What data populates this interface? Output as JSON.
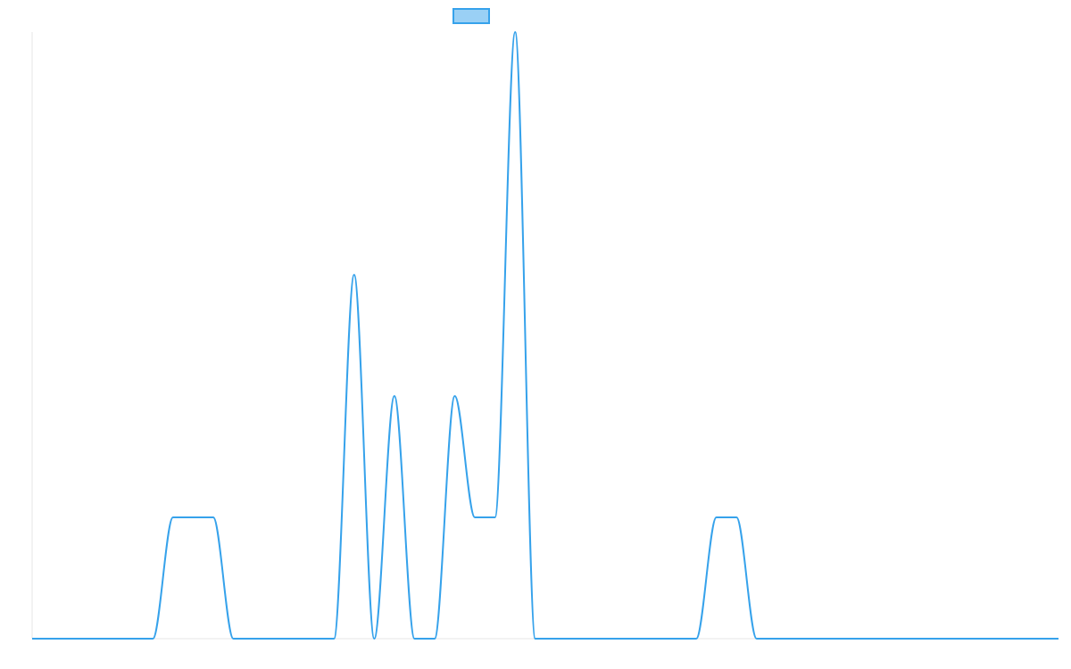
{
  "chart_data": {
    "type": "line",
    "title": "",
    "xlabel": "",
    "ylabel": "",
    "legend": {
      "placement": "top-center",
      "entries": [
        {
          "name": "",
          "color": "#36a2eb"
        }
      ]
    },
    "grid": false,
    "x_range": [
      0,
      51
    ],
    "ylim": [
      0,
      5
    ],
    "series": [
      {
        "name": "",
        "color": "#36a2eb",
        "fill": "#9ad0f5",
        "x": [
          0,
          1,
          2,
          3,
          4,
          5,
          6,
          7,
          8,
          9,
          10,
          11,
          12,
          13,
          14,
          15,
          16,
          17,
          18,
          19,
          20,
          21,
          22,
          23,
          24,
          25,
          26,
          27,
          28,
          29,
          30,
          31,
          32,
          33,
          34,
          35,
          36,
          37,
          38,
          39,
          40,
          41,
          42,
          43,
          44,
          45,
          46,
          47,
          48,
          49,
          50,
          51
        ],
        "values": [
          0,
          0,
          0,
          0,
          0,
          0,
          0,
          1,
          1,
          1,
          0,
          0,
          0,
          0,
          0,
          0,
          3,
          0,
          2,
          0,
          0,
          2,
          1,
          1,
          5,
          0,
          0,
          0,
          0,
          0,
          0,
          0,
          0,
          0,
          1,
          1,
          0,
          0,
          0,
          0,
          0,
          0,
          0,
          0,
          0,
          0,
          0,
          0,
          0,
          0,
          0,
          0
        ]
      }
    ]
  }
}
